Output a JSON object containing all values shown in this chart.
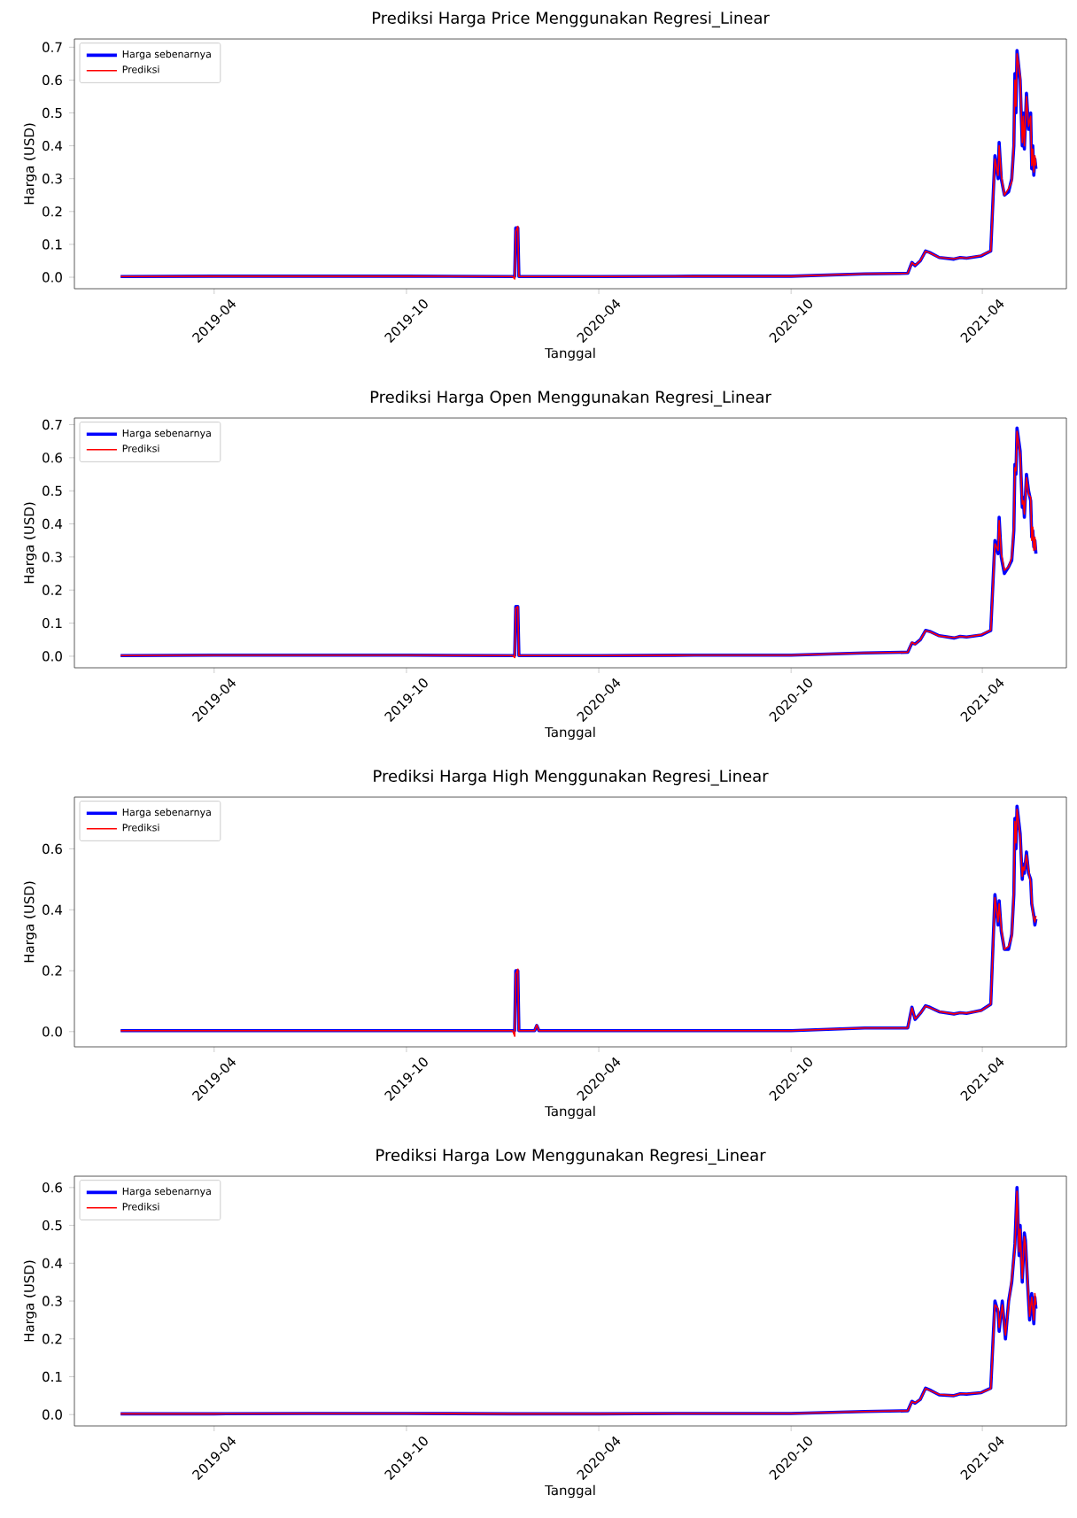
{
  "chart_data": [
    {
      "type": "line",
      "title": "Prediksi Harga Price Menggunakan Regresi_Linear",
      "xlabel": "Tanggal",
      "ylabel": "Harga (USD)",
      "legend": "top left",
      "x": [
        "2019-01-02",
        "2019-04-01",
        "2019-07-01",
        "2019-10-01",
        "2020-01-10",
        "2020-01-12",
        "2020-01-13",
        "2020-01-15",
        "2020-01-16",
        "2020-04-01",
        "2020-07-01",
        "2020-10-01",
        "2020-12-10",
        "2021-01-20",
        "2021-01-24",
        "2021-01-27",
        "2021-02-01",
        "2021-02-06",
        "2021-02-10",
        "2021-02-19",
        "2021-03-05",
        "2021-03-11",
        "2021-03-17",
        "2021-03-31",
        "2021-04-09",
        "2021-04-13",
        "2021-04-16",
        "2021-04-17",
        "2021-04-19",
        "2021-04-22",
        "2021-04-26",
        "2021-04-29",
        "2021-05-01",
        "2021-05-02",
        "2021-05-03",
        "2021-05-04",
        "2021-05-07",
        "2021-05-09",
        "2021-05-10",
        "2021-05-11",
        "2021-05-13",
        "2021-05-15",
        "2021-05-17",
        "2021-05-18",
        "2021-05-19",
        "2021-05-20",
        "2021-05-21",
        "2021-05-22"
      ],
      "series": [
        {
          "name": "Harga sebenarnya",
          "color": "#0000ff",
          "values": [
            0.002,
            0.003,
            0.003,
            0.003,
            0.002,
            0.002,
            0.15,
            0.15,
            0.002,
            0.002,
            0.003,
            0.003,
            0.01,
            0.012,
            0.045,
            0.035,
            0.05,
            0.08,
            0.075,
            0.06,
            0.055,
            0.06,
            0.058,
            0.065,
            0.08,
            0.37,
            0.3,
            0.41,
            0.3,
            0.25,
            0.26,
            0.3,
            0.4,
            0.62,
            0.5,
            0.69,
            0.6,
            0.4,
            0.5,
            0.39,
            0.56,
            0.45,
            0.5,
            0.33,
            0.4,
            0.31,
            0.36,
            0.33
          ]
        },
        {
          "name": "Prediksi",
          "color": "#ff0000",
          "values": [
            0.002,
            0.003,
            0.003,
            0.003,
            0.002,
            -0.005,
            0.14,
            0.155,
            0.002,
            0.002,
            0.003,
            0.003,
            0.01,
            0.012,
            0.044,
            0.036,
            0.05,
            0.079,
            0.074,
            0.06,
            0.056,
            0.06,
            0.058,
            0.066,
            0.08,
            0.36,
            0.31,
            0.4,
            0.31,
            0.25,
            0.27,
            0.29,
            0.41,
            0.6,
            0.52,
            0.68,
            0.61,
            0.41,
            0.49,
            0.4,
            0.55,
            0.46,
            0.49,
            0.34,
            0.39,
            0.32,
            0.37,
            0.34
          ]
        }
      ],
      "xlim": [
        "2018-11-19",
        "2021-06-20"
      ],
      "xticks": [
        "2019-04",
        "2019-10",
        "2020-04",
        "2020-10",
        "2021-04"
      ],
      "ylim": [
        -0.035,
        0.725
      ],
      "yticks": [
        {
          "value": 0,
          "label": "0.0"
        },
        0.1,
        0.2,
        0.3,
        0.4,
        0.5,
        0.6,
        0.7
      ]
    },
    {
      "type": "line",
      "title": "Prediksi Harga Open Menggunakan Regresi_Linear",
      "xlabel": "Tanggal",
      "ylabel": "Harga (USD)",
      "legend": "top left",
      "x": [
        "2019-01-02",
        "2019-04-01",
        "2019-07-01",
        "2019-10-01",
        "2020-01-10",
        "2020-01-12",
        "2020-01-13",
        "2020-01-15",
        "2020-01-16",
        "2020-04-01",
        "2020-07-01",
        "2020-10-01",
        "2020-12-10",
        "2021-01-20",
        "2021-01-24",
        "2021-01-27",
        "2021-02-01",
        "2021-02-06",
        "2021-02-10",
        "2021-02-19",
        "2021-03-05",
        "2021-03-11",
        "2021-03-17",
        "2021-03-31",
        "2021-04-09",
        "2021-04-13",
        "2021-04-16",
        "2021-04-17",
        "2021-04-19",
        "2021-04-22",
        "2021-04-26",
        "2021-04-29",
        "2021-05-01",
        "2021-05-02",
        "2021-05-03",
        "2021-05-04",
        "2021-05-07",
        "2021-05-09",
        "2021-05-10",
        "2021-05-11",
        "2021-05-13",
        "2021-05-15",
        "2021-05-17",
        "2021-05-18",
        "2021-05-19",
        "2021-05-20",
        "2021-05-21",
        "2021-05-22"
      ],
      "series": [
        {
          "name": "Harga sebenarnya",
          "color": "#0000ff",
          "values": [
            0.002,
            0.003,
            0.003,
            0.003,
            0.002,
            0.002,
            0.15,
            0.15,
            0.002,
            0.002,
            0.003,
            0.003,
            0.01,
            0.012,
            0.04,
            0.037,
            0.05,
            0.078,
            0.075,
            0.062,
            0.055,
            0.06,
            0.058,
            0.064,
            0.078,
            0.35,
            0.31,
            0.42,
            0.3,
            0.25,
            0.27,
            0.29,
            0.38,
            0.58,
            0.55,
            0.69,
            0.62,
            0.45,
            0.48,
            0.42,
            0.55,
            0.5,
            0.47,
            0.36,
            0.38,
            0.33,
            0.35,
            0.31
          ]
        },
        {
          "name": "Prediksi",
          "color": "#ff0000",
          "values": [
            0.002,
            0.003,
            0.003,
            0.003,
            0.002,
            -0.004,
            0.145,
            0.15,
            0.002,
            0.002,
            0.003,
            0.003,
            0.01,
            0.012,
            0.042,
            0.036,
            0.05,
            0.077,
            0.074,
            0.061,
            0.056,
            0.06,
            0.058,
            0.065,
            0.079,
            0.34,
            0.32,
            0.41,
            0.31,
            0.26,
            0.27,
            0.3,
            0.39,
            0.57,
            0.56,
            0.68,
            0.61,
            0.46,
            0.47,
            0.43,
            0.54,
            0.49,
            0.48,
            0.35,
            0.39,
            0.32,
            0.36,
            0.32
          ]
        }
      ],
      "xlim": [
        "2018-11-19",
        "2021-06-20"
      ],
      "xticks": [
        "2019-04",
        "2019-10",
        "2020-04",
        "2020-10",
        "2021-04"
      ],
      "ylim": [
        -0.035,
        0.72
      ],
      "yticks": [
        {
          "value": 0,
          "label": "0.0"
        },
        0.1,
        0.2,
        0.3,
        0.4,
        0.5,
        0.6,
        0.7
      ]
    },
    {
      "type": "line",
      "title": "Prediksi Harga High Menggunakan Regresi_Linear",
      "xlabel": "Tanggal",
      "ylabel": "Harga (USD)",
      "legend": "top left",
      "x": [
        "2019-01-02",
        "2019-04-01",
        "2019-07-01",
        "2019-10-01",
        "2020-01-10",
        "2020-01-12",
        "2020-01-13",
        "2020-01-15",
        "2020-01-16",
        "2020-01-31",
        "2020-02-02",
        "2020-02-04",
        "2020-04-01",
        "2020-07-01",
        "2020-10-01",
        "2020-12-10",
        "2021-01-20",
        "2021-01-24",
        "2021-01-27",
        "2021-02-01",
        "2021-02-06",
        "2021-02-10",
        "2021-02-19",
        "2021-03-05",
        "2021-03-11",
        "2021-03-17",
        "2021-03-31",
        "2021-04-09",
        "2021-04-13",
        "2021-04-16",
        "2021-04-17",
        "2021-04-19",
        "2021-04-22",
        "2021-04-26",
        "2021-04-29",
        "2021-05-01",
        "2021-05-02",
        "2021-05-03",
        "2021-05-04",
        "2021-05-07",
        "2021-05-09",
        "2021-05-10",
        "2021-05-11",
        "2021-05-13",
        "2021-05-15",
        "2021-05-17",
        "2021-05-18",
        "2021-05-19",
        "2021-05-20",
        "2021-05-21",
        "2021-05-22"
      ],
      "series": [
        {
          "name": "Harga sebenarnya",
          "color": "#0000ff",
          "values": [
            0.003,
            0.003,
            0.003,
            0.003,
            0.003,
            0.003,
            0.2,
            0.2,
            0.003,
            0.003,
            0.02,
            0.003,
            0.003,
            0.003,
            0.003,
            0.012,
            0.012,
            0.08,
            0.04,
            0.06,
            0.085,
            0.08,
            0.065,
            0.058,
            0.062,
            0.06,
            0.07,
            0.09,
            0.45,
            0.35,
            0.43,
            0.33,
            0.27,
            0.27,
            0.32,
            0.45,
            0.7,
            0.6,
            0.74,
            0.65,
            0.5,
            0.55,
            0.52,
            0.59,
            0.52,
            0.5,
            0.42,
            0.4,
            0.38,
            0.35,
            0.37
          ]
        },
        {
          "name": "Prediksi",
          "color": "#ff0000",
          "values": [
            0.003,
            0.003,
            0.003,
            0.003,
            0.003,
            -0.015,
            0.19,
            0.205,
            0.003,
            0.003,
            0.022,
            0.003,
            0.003,
            0.003,
            0.003,
            0.012,
            0.012,
            0.078,
            0.042,
            0.06,
            0.084,
            0.079,
            0.066,
            0.058,
            0.062,
            0.061,
            0.069,
            0.09,
            0.44,
            0.36,
            0.42,
            0.34,
            0.27,
            0.28,
            0.31,
            0.46,
            0.69,
            0.62,
            0.73,
            0.64,
            0.51,
            0.54,
            0.53,
            0.58,
            0.53,
            0.49,
            0.43,
            0.39,
            0.37,
            0.36,
            0.38
          ]
        }
      ],
      "xlim": [
        "2018-11-19",
        "2021-06-20"
      ],
      "xticks": [
        "2019-04",
        "2019-10",
        "2020-04",
        "2020-10",
        "2021-04"
      ],
      "ylim": [
        -0.05,
        0.77
      ],
      "yticks": [
        {
          "value": 0,
          "label": "0.0"
        },
        {
          "value": 0.2,
          "label": "0.2"
        },
        {
          "value": 0.4,
          "label": "0.4"
        },
        {
          "value": 0.6,
          "label": "0.6"
        }
      ]
    },
    {
      "type": "line",
      "title": "Prediksi Harga Low Menggunakan Regresi_Linear",
      "xlabel": "Tanggal",
      "ylabel": "Harga (USD)",
      "legend": "top left",
      "x": [
        "2019-01-02",
        "2019-04-01",
        "2019-07-01",
        "2019-10-01",
        "2020-01-10",
        "2020-04-01",
        "2020-07-01",
        "2020-10-01",
        "2020-12-10",
        "2021-01-20",
        "2021-01-24",
        "2021-01-27",
        "2021-02-01",
        "2021-02-06",
        "2021-02-10",
        "2021-02-19",
        "2021-03-05",
        "2021-03-11",
        "2021-03-17",
        "2021-03-31",
        "2021-04-09",
        "2021-04-13",
        "2021-04-16",
        "2021-04-17",
        "2021-04-20",
        "2021-04-23",
        "2021-04-26",
        "2021-04-29",
        "2021-05-02",
        "2021-05-04",
        "2021-05-06",
        "2021-05-07",
        "2021-05-09",
        "2021-05-11",
        "2021-05-12",
        "2021-05-14",
        "2021-05-16",
        "2021-05-18",
        "2021-05-20",
        "2021-05-21",
        "2021-05-22"
      ],
      "series": [
        {
          "name": "Harga sebenarnya",
          "color": "#0000ff",
          "values": [
            0.002,
            0.002,
            0.003,
            0.003,
            0.002,
            0.002,
            0.003,
            0.003,
            0.008,
            0.01,
            0.035,
            0.03,
            0.04,
            0.07,
            0.065,
            0.052,
            0.05,
            0.055,
            0.054,
            0.058,
            0.07,
            0.3,
            0.27,
            0.22,
            0.3,
            0.2,
            0.3,
            0.35,
            0.45,
            0.6,
            0.42,
            0.5,
            0.35,
            0.48,
            0.46,
            0.35,
            0.25,
            0.32,
            0.24,
            0.31,
            0.28
          ]
        },
        {
          "name": "Prediksi",
          "color": "#ff0000",
          "values": [
            0.002,
            0.002,
            0.003,
            0.003,
            0.002,
            0.002,
            0.003,
            0.003,
            0.008,
            0.01,
            0.034,
            0.031,
            0.04,
            0.069,
            0.064,
            0.053,
            0.05,
            0.055,
            0.055,
            0.058,
            0.069,
            0.29,
            0.28,
            0.23,
            0.29,
            0.21,
            0.29,
            0.36,
            0.44,
            0.59,
            0.43,
            0.49,
            0.36,
            0.47,
            0.45,
            0.36,
            0.26,
            0.31,
            0.25,
            0.32,
            0.29
          ]
        }
      ],
      "xlim": [
        "2018-11-19",
        "2021-06-20"
      ],
      "xticks": [
        "2019-04",
        "2019-10",
        "2020-04",
        "2020-10",
        "2021-04"
      ],
      "ylim": [
        -0.03,
        0.63
      ],
      "yticks": [
        {
          "value": 0,
          "label": "0.0"
        },
        0.1,
        0.2,
        0.3,
        0.4,
        0.5,
        0.6
      ]
    }
  ]
}
